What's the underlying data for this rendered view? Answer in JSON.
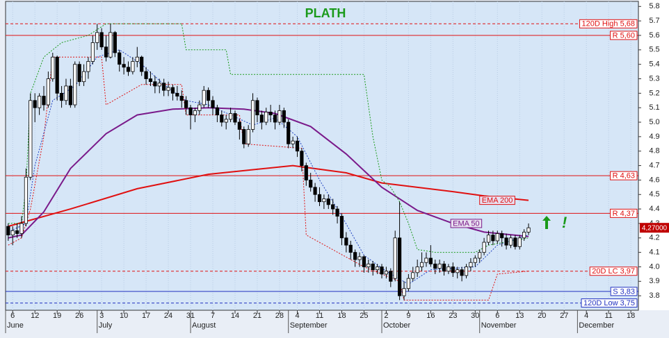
{
  "chart_data": {
    "type": "candlestick",
    "title": "PLATH",
    "xlim": [
      -0.6,
      141.7
    ],
    "ylim": [
      3.7,
      5.835
    ],
    "yticks": [
      3.8,
      3.9,
      {
        "value": 4.0,
        "label": "4.0"
      },
      4.1,
      4.2,
      4.3,
      4.4,
      4.5,
      4.6,
      4.7,
      4.8,
      4.9,
      {
        "value": 5.0,
        "label": "5.0"
      },
      5.1,
      5.2,
      5.3,
      5.4,
      5.5,
      5.6,
      5.7,
      5.8
    ],
    "xticks": [
      {
        "value": 1,
        "label": "6"
      },
      {
        "value": 6,
        "label": "12"
      },
      {
        "value": 11,
        "label": "19"
      },
      {
        "value": 16,
        "label": "26"
      },
      {
        "value": 21,
        "label": "3"
      },
      {
        "value": 26,
        "label": "10"
      },
      {
        "value": 31,
        "label": "17"
      },
      {
        "value": 36,
        "label": "24"
      },
      {
        "value": 41,
        "label": "31"
      },
      {
        "value": 46,
        "label": "7"
      },
      {
        "value": 51,
        "label": "14"
      },
      {
        "value": 56,
        "label": "21"
      },
      {
        "value": 61,
        "label": "28"
      },
      {
        "value": 65,
        "label": "4"
      },
      {
        "value": 70,
        "label": "11"
      },
      {
        "value": 75,
        "label": "18"
      },
      {
        "value": 80,
        "label": "25"
      },
      {
        "value": 85,
        "label": "2"
      },
      {
        "value": 90,
        "label": "9"
      },
      {
        "value": 95,
        "label": "16"
      },
      {
        "value": 100,
        "label": "23"
      },
      {
        "value": 105,
        "label": "30"
      },
      {
        "value": 110,
        "label": "6"
      },
      {
        "value": 115,
        "label": "13"
      },
      {
        "value": 120,
        "label": "20"
      },
      {
        "value": 125,
        "label": "27"
      },
      {
        "value": 130,
        "label": "4"
      },
      {
        "value": 135,
        "label": "11"
      },
      {
        "value": 140,
        "label": "18"
      }
    ],
    "months": [
      {
        "label": "June",
        "x": -0.6
      },
      {
        "label": "July",
        "x": 20
      },
      {
        "label": "August",
        "x": 41
      },
      {
        "label": "September",
        "x": 63
      },
      {
        "label": "October",
        "x": 84
      },
      {
        "label": "November",
        "x": 106
      },
      {
        "label": "December",
        "x": 128
      }
    ],
    "candles": [
      [
        4.28,
        4.3,
        4.18,
        4.22
      ],
      [
        4.22,
        4.28,
        4.15,
        4.25
      ],
      [
        4.25,
        4.3,
        4.2,
        4.23
      ],
      [
        4.23,
        4.35,
        4.2,
        4.3
      ],
      [
        4.3,
        4.68,
        4.28,
        4.62
      ],
      [
        4.62,
        5.2,
        4.6,
        5.15
      ],
      [
        5.15,
        5.2,
        5.0,
        5.1
      ],
      [
        5.1,
        5.2,
        5.05,
        5.18
      ],
      [
        5.18,
        5.25,
        5.08,
        5.12
      ],
      [
        5.12,
        5.35,
        5.1,
        5.3
      ],
      [
        5.3,
        5.48,
        5.28,
        5.45
      ],
      [
        5.45,
        5.46,
        5.15,
        5.2
      ],
      [
        5.2,
        5.25,
        5.1,
        5.15
      ],
      [
        5.15,
        5.3,
        5.12,
        5.25
      ],
      [
        5.25,
        5.3,
        5.1,
        5.12
      ],
      [
        5.12,
        5.42,
        5.1,
        5.4
      ],
      [
        5.4,
        5.42,
        5.25,
        5.28
      ],
      [
        5.28,
        5.4,
        5.25,
        5.35
      ],
      [
        5.35,
        5.45,
        5.3,
        5.42
      ],
      [
        5.42,
        5.6,
        5.4,
        5.55
      ],
      [
        5.55,
        5.68,
        5.5,
        5.62
      ],
      [
        5.62,
        5.65,
        5.5,
        5.52
      ],
      [
        5.52,
        5.6,
        5.42,
        5.45
      ],
      [
        5.45,
        5.68,
        5.44,
        5.62
      ],
      [
        5.62,
        5.63,
        5.45,
        5.48
      ],
      [
        5.48,
        5.5,
        5.35,
        5.4
      ],
      [
        5.4,
        5.45,
        5.33,
        5.38
      ],
      [
        5.38,
        5.42,
        5.32,
        5.35
      ],
      [
        5.35,
        5.45,
        5.33,
        5.42
      ],
      [
        5.42,
        5.52,
        5.38,
        5.45
      ],
      [
        5.45,
        5.46,
        5.32,
        5.35
      ],
      [
        5.35,
        5.38,
        5.26,
        5.3
      ],
      [
        5.3,
        5.35,
        5.25,
        5.28
      ],
      [
        5.28,
        5.32,
        5.2,
        5.25
      ],
      [
        5.25,
        5.3,
        5.2,
        5.27
      ],
      [
        5.27,
        5.3,
        5.18,
        5.22
      ],
      [
        5.22,
        5.28,
        5.18,
        5.24
      ],
      [
        5.24,
        5.26,
        5.15,
        5.2
      ],
      [
        5.2,
        5.25,
        5.15,
        5.18
      ],
      [
        5.18,
        5.22,
        5.1,
        5.15
      ],
      [
        5.15,
        5.18,
        5.05,
        5.1
      ],
      [
        5.1,
        5.12,
        4.95,
        5.05
      ],
      [
        5.05,
        5.1,
        5.0,
        5.08
      ],
      [
        5.08,
        5.15,
        5.05,
        5.12
      ],
      [
        5.12,
        5.25,
        5.1,
        5.22
      ],
      [
        5.22,
        5.24,
        5.1,
        5.15
      ],
      [
        5.15,
        5.18,
        5.05,
        5.1
      ],
      [
        5.1,
        5.12,
        5.0,
        5.05
      ],
      [
        5.05,
        5.08,
        4.97,
        5.0
      ],
      [
        5.0,
        5.05,
        4.95,
        5.02
      ],
      [
        5.02,
        5.1,
        5.0,
        5.06
      ],
      [
        5.06,
        5.08,
        4.98,
        5.0
      ],
      [
        5.0,
        5.02,
        4.88,
        4.95
      ],
      [
        4.95,
        4.97,
        4.82,
        4.85
      ],
      [
        4.85,
        4.98,
        4.83,
        4.95
      ],
      [
        4.95,
        5.2,
        4.93,
        5.15
      ],
      [
        5.15,
        5.17,
        5.0,
        5.05
      ],
      [
        5.05,
        5.08,
        4.95,
        5.0
      ],
      [
        5.0,
        5.1,
        4.98,
        5.07
      ],
      [
        5.07,
        5.12,
        5.0,
        5.05
      ],
      [
        5.05,
        5.08,
        4.95,
        5.0
      ],
      [
        5.0,
        5.12,
        4.98,
        5.08
      ],
      [
        5.08,
        5.1,
        4.96,
        5.0
      ],
      [
        5.0,
        5.02,
        4.82,
        4.85
      ],
      [
        4.85,
        4.9,
        4.82,
        4.87
      ],
      [
        4.87,
        4.9,
        4.76,
        4.8
      ],
      [
        4.8,
        4.82,
        4.66,
        4.7
      ],
      [
        4.7,
        4.72,
        4.56,
        4.6
      ],
      [
        4.6,
        4.65,
        4.52,
        4.55
      ],
      [
        4.55,
        4.58,
        4.45,
        4.5
      ],
      [
        4.5,
        4.55,
        4.42,
        4.45
      ],
      [
        4.45,
        4.5,
        4.4,
        4.47
      ],
      [
        4.47,
        4.5,
        4.4,
        4.43
      ],
      [
        4.43,
        4.47,
        4.36,
        4.4
      ],
      [
        4.4,
        4.42,
        4.3,
        4.35
      ],
      [
        4.35,
        4.37,
        4.15,
        4.2
      ],
      [
        4.2,
        4.24,
        4.1,
        4.15
      ],
      [
        4.15,
        4.18,
        4.05,
        4.1
      ],
      [
        4.1,
        4.12,
        4.0,
        4.05
      ],
      [
        4.05,
        4.1,
        4.0,
        4.07
      ],
      [
        4.07,
        4.08,
        3.96,
        4.0
      ],
      [
        4.0,
        4.05,
        3.96,
        4.02
      ],
      [
        4.02,
        4.04,
        3.94,
        3.98
      ],
      [
        3.98,
        4.02,
        3.95,
        4.0
      ],
      [
        4.0,
        4.02,
        3.92,
        3.95
      ],
      [
        3.95,
        4.0,
        3.92,
        3.97
      ],
      [
        3.97,
        3.99,
        3.86,
        3.9
      ],
      [
        3.92,
        4.25,
        3.9,
        4.2
      ],
      [
        4.2,
        4.45,
        3.77,
        3.8
      ],
      [
        3.8,
        3.9,
        3.77,
        3.85
      ],
      [
        3.85,
        3.95,
        3.83,
        3.92
      ],
      [
        3.92,
        4.0,
        3.9,
        3.96
      ],
      [
        3.96,
        4.05,
        3.93,
        4.0
      ],
      [
        4.0,
        4.1,
        3.97,
        4.03
      ],
      [
        4.03,
        4.1,
        4.0,
        4.06
      ],
      [
        4.06,
        4.15,
        4.0,
        4.02
      ],
      [
        4.02,
        4.05,
        3.95,
        3.99
      ],
      [
        3.99,
        4.05,
        3.96,
        4.02
      ],
      [
        4.02,
        4.04,
        3.94,
        3.97
      ],
      [
        3.97,
        4.02,
        3.95,
        4.0
      ],
      [
        4.0,
        4.03,
        3.93,
        3.96
      ],
      [
        3.96,
        4.0,
        3.92,
        3.98
      ],
      [
        3.98,
        4.0,
        3.9,
        3.94
      ],
      [
        3.94,
        4.02,
        3.92,
        4.0
      ],
      [
        4.0,
        4.06,
        3.97,
        4.03
      ],
      [
        4.03,
        4.08,
        4.0,
        4.06
      ],
      [
        4.06,
        4.12,
        4.03,
        4.1
      ],
      [
        4.1,
        4.2,
        4.08,
        4.17
      ],
      [
        4.17,
        4.25,
        4.15,
        4.22
      ],
      [
        4.22,
        4.25,
        4.15,
        4.18
      ],
      [
        4.18,
        4.25,
        4.16,
        4.23
      ],
      [
        4.23,
        4.25,
        4.14,
        4.2
      ],
      [
        4.2,
        4.23,
        4.12,
        4.15
      ],
      [
        4.15,
        4.22,
        4.13,
        4.2
      ],
      [
        4.2,
        4.22,
        4.12,
        4.14
      ],
      [
        4.14,
        4.22,
        4.12,
        4.2
      ],
      [
        4.2,
        4.26,
        4.18,
        4.24
      ],
      [
        4.24,
        4.3,
        4.22,
        4.27
      ]
    ],
    "lines": [
      {
        "name": "EMA 200",
        "color": "#e01010",
        "width": 2,
        "dash": false,
        "x": [
          0,
          14,
          29,
          45,
          64,
          76,
          84,
          100,
          107,
          117
        ],
        "values": [
          4.28,
          4.4,
          4.54,
          4.64,
          4.7,
          4.65,
          4.58,
          4.52,
          4.49,
          4.46
        ]
      },
      {
        "name": "EMA 50",
        "color": "#7a1a8a",
        "width": 2,
        "dash": false,
        "x": [
          0,
          3,
          8,
          14,
          22,
          29,
          37,
          45,
          53,
          60,
          68,
          76,
          84,
          92,
          100,
          107,
          117
        ],
        "values": [
          4.2,
          4.22,
          4.38,
          4.68,
          4.92,
          5.05,
          5.09,
          5.1,
          5.09,
          5.06,
          4.97,
          4.78,
          4.55,
          4.39,
          4.3,
          4.24,
          4.21
        ]
      },
      {
        "color": "#1a9a1a",
        "width": 1,
        "dash": true,
        "x": [
          0,
          3,
          4,
          5,
          8,
          12,
          18,
          22,
          39,
          40,
          49,
          50,
          80,
          82,
          84,
          86,
          88,
          90,
          92,
          96,
          105,
          108,
          117
        ],
        "values": [
          4.3,
          4.3,
          4.55,
          5.2,
          5.45,
          5.55,
          5.6,
          5.68,
          5.68,
          5.5,
          5.5,
          5.33,
          5.33,
          4.9,
          4.6,
          4.55,
          4.45,
          4.3,
          4.12,
          4.1,
          4.1,
          4.15,
          4.2
        ]
      },
      {
        "color": "#e01010",
        "width": 1,
        "dash": true,
        "x": [
          0,
          3,
          5,
          8,
          10,
          21,
          22,
          30,
          39,
          40,
          52,
          53,
          66,
          67,
          80,
          84,
          88,
          89,
          108,
          110,
          117
        ],
        "values": [
          4.15,
          4.2,
          4.4,
          4.9,
          5.45,
          5.45,
          5.12,
          5.26,
          5.26,
          5.05,
          5.05,
          4.85,
          4.82,
          4.22,
          4.0,
          3.95,
          3.9,
          3.77,
          3.77,
          3.95,
          3.97
        ]
      },
      {
        "color": "#2040c0",
        "width": 1,
        "dash": true,
        "x": [
          0,
          4,
          6,
          10,
          15,
          20,
          25,
          30,
          35,
          40,
          45,
          50,
          55,
          60,
          65,
          70,
          75,
          80,
          85,
          90,
          95,
          100,
          105,
          110,
          117
        ],
        "values": [
          4.24,
          4.3,
          4.7,
          5.15,
          5.25,
          5.45,
          5.5,
          5.4,
          5.26,
          5.15,
          5.12,
          5.05,
          4.98,
          5.03,
          4.9,
          4.6,
          4.35,
          4.08,
          3.97,
          3.88,
          3.98,
          3.99,
          4.0,
          4.15,
          4.22
        ]
      }
    ],
    "levels": [
      {
        "label": "120D High 5,68",
        "value": 5.68,
        "color": "#e01010",
        "dash": true
      },
      {
        "label": "R 5,60",
        "value": 5.6,
        "color": "#e01010",
        "dash": false
      },
      {
        "label": "R 4,63",
        "value": 4.63,
        "color": "#e01010",
        "dash": false
      },
      {
        "label": "R 4,37",
        "value": 4.37,
        "color": "#e01010",
        "dash": false
      },
      {
        "label": "20D LC 3,97",
        "value": 3.97,
        "color": "#e01010",
        "dash": true
      },
      {
        "label": "S 3,83",
        "value": 3.83,
        "color": "#2030c0",
        "dash": false
      },
      {
        "label": "120D Low 3,75",
        "value": 3.75,
        "color": "#2030c0",
        "dash": true
      }
    ],
    "annotations": [
      {
        "text": "EMA 200",
        "x": 106,
        "y": 4.46,
        "color": "#e01010"
      },
      {
        "text": "EMA 50",
        "x": 99.5,
        "y": 4.3,
        "color": "#7a1a8a"
      },
      {
        "text": "!",
        "x": 124.5,
        "y": 4.3,
        "color": "#1a9a1a"
      }
    ],
    "last_price": {
      "value": 4.27,
      "label": "4,27000"
    }
  }
}
